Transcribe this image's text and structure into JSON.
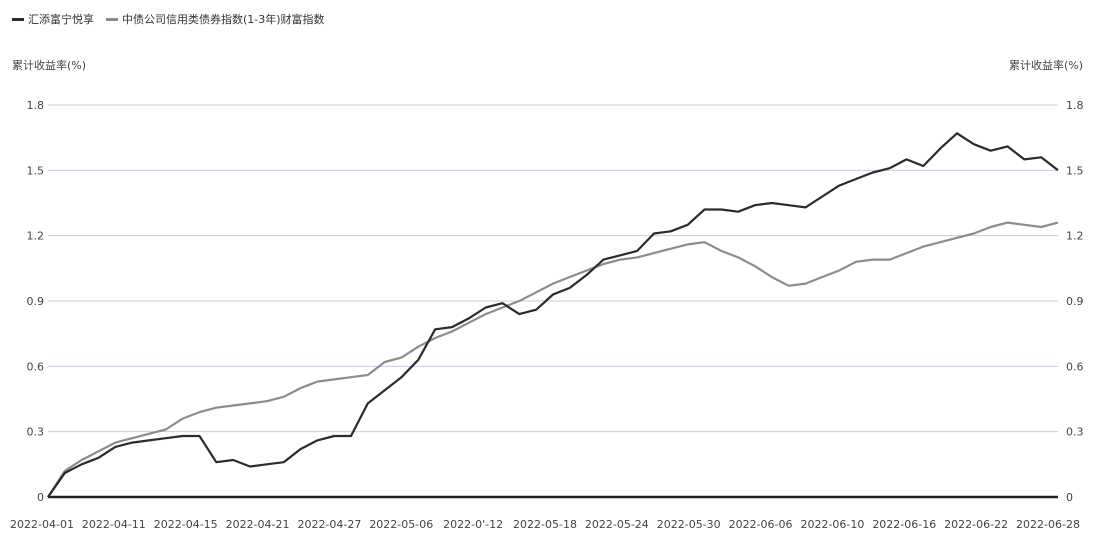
{
  "chart_data": {
    "type": "line",
    "legend_position": "top-left",
    "grid": true,
    "yaxis_left_title": "累计收益率(%)",
    "yaxis_right_title": "累计收益率(%)",
    "ylim": [
      0,
      1.8
    ],
    "yticks_left": [
      "0",
      "0.3",
      "0.6",
      "0.9",
      "1.2",
      "1.5",
      "1.8"
    ],
    "yticks_right": [
      "0",
      "0.3",
      "0.6",
      "0.9",
      "1.2",
      "1.5",
      "1.8"
    ],
    "xtick_labels": [
      "2022-04-01",
      "2022-04-11",
      "2022-04-15",
      "2022-04-21",
      "2022-04-27",
      "2022-05-06",
      "2022-0'-12",
      "2022-05-18",
      "2022-05-24",
      "2022-05-30",
      "2022-06-06",
      "2022-06-10",
      "2022-06-16",
      "2022-06-22",
      "2022-06-28"
    ],
    "series": [
      {
        "name": "汇添富宁悦享",
        "color": "#2b2b2b",
        "values": [
          0.0,
          0.11,
          0.15,
          0.18,
          0.23,
          0.25,
          0.26,
          0.27,
          0.28,
          0.28,
          0.16,
          0.17,
          0.14,
          0.15,
          0.16,
          0.22,
          0.26,
          0.28,
          0.28,
          0.43,
          0.49,
          0.55,
          0.63,
          0.77,
          0.78,
          0.82,
          0.87,
          0.89,
          0.84,
          0.86,
          0.93,
          0.96,
          1.02,
          1.09,
          1.11,
          1.13,
          1.21,
          1.22,
          1.25,
          1.32,
          1.32,
          1.31,
          1.34,
          1.35,
          1.34,
          1.33,
          1.38,
          1.43,
          1.46,
          1.49,
          1.51,
          1.55,
          1.52,
          1.6,
          1.67,
          1.62,
          1.59,
          1.61,
          1.55,
          1.56,
          1.5
        ]
      },
      {
        "name": "中债公司信用类债券指数(1-3年)财富指数",
        "color": "#8c8c8c",
        "values": [
          0.0,
          0.12,
          0.17,
          0.21,
          0.25,
          0.27,
          0.29,
          0.31,
          0.36,
          0.39,
          0.41,
          0.42,
          0.43,
          0.44,
          0.46,
          0.5,
          0.53,
          0.54,
          0.55,
          0.56,
          0.62,
          0.64,
          0.69,
          0.73,
          0.76,
          0.8,
          0.84,
          0.87,
          0.9,
          0.94,
          0.98,
          1.01,
          1.04,
          1.07,
          1.09,
          1.1,
          1.12,
          1.14,
          1.16,
          1.17,
          1.13,
          1.1,
          1.06,
          1.01,
          0.97,
          0.98,
          1.01,
          1.04,
          1.08,
          1.09,
          1.09,
          1.12,
          1.15,
          1.17,
          1.19,
          1.21,
          1.24,
          1.26,
          1.25,
          1.24,
          1.26
        ]
      }
    ]
  }
}
